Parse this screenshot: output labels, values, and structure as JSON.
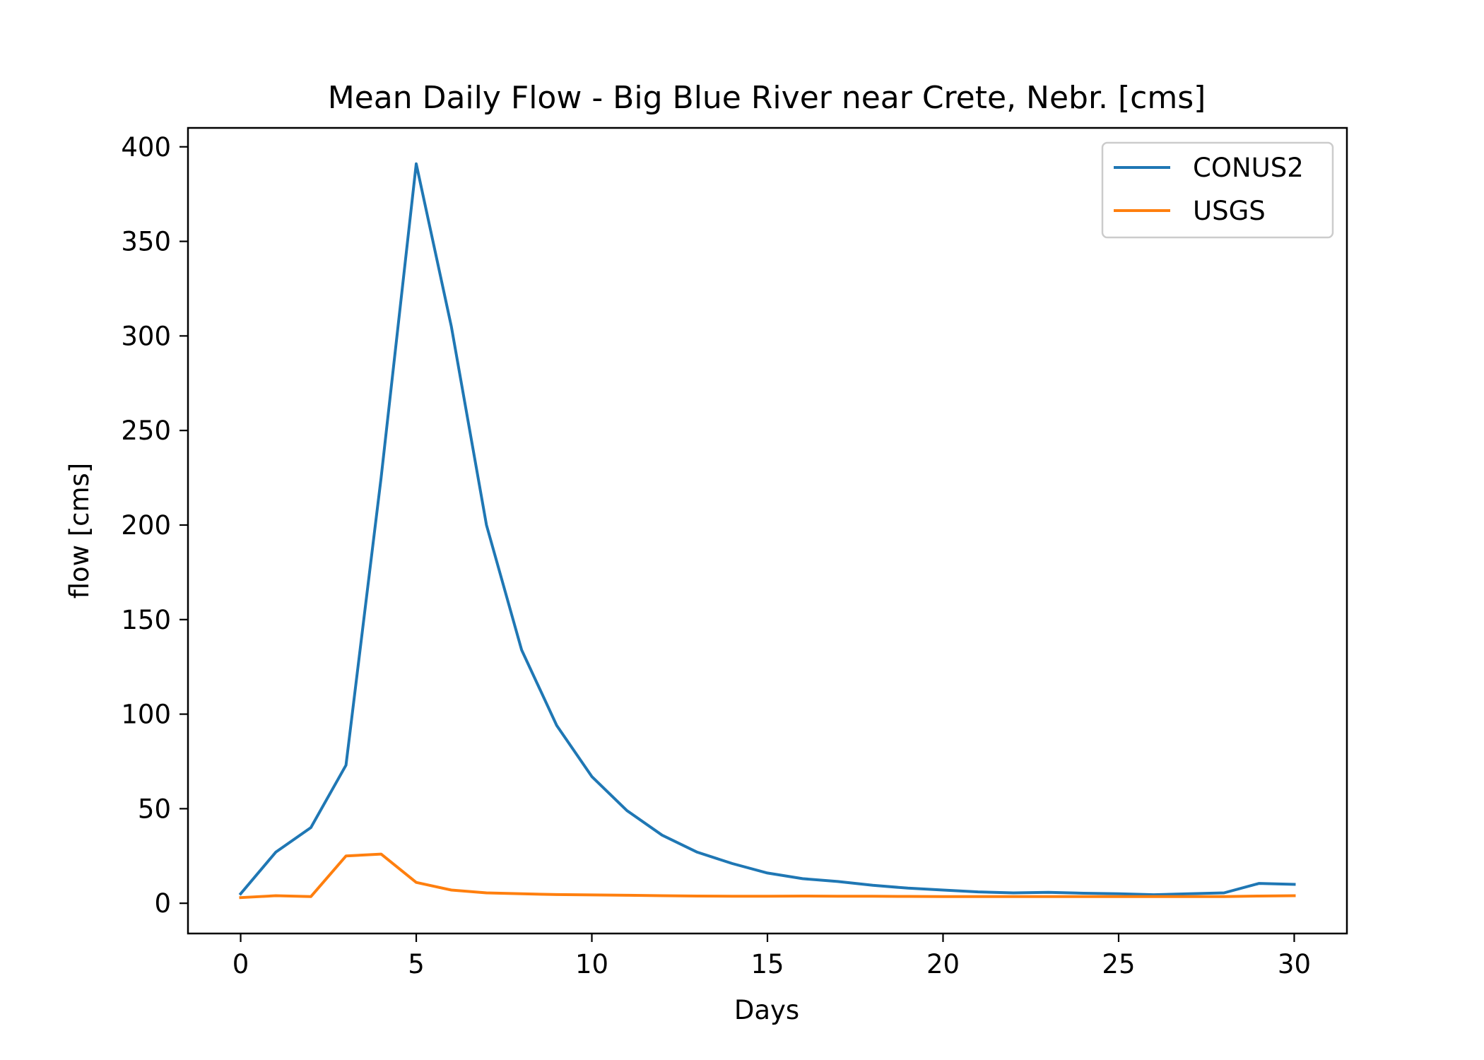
{
  "chart_data": {
    "type": "line",
    "title": "Mean Daily Flow - Big Blue River near Crete, Nebr. [cms]",
    "xlabel": "Days",
    "ylabel": "flow [cms]",
    "xlim": [
      -1.5,
      31.5
    ],
    "ylim": [
      -16,
      410
    ],
    "xticks": [
      0,
      5,
      10,
      15,
      20,
      25,
      30
    ],
    "yticks": [
      0,
      50,
      100,
      150,
      200,
      250,
      300,
      350,
      400
    ],
    "grid": false,
    "legend": "top-right",
    "x": [
      0,
      1,
      2,
      3,
      4,
      5,
      6,
      7,
      8,
      9,
      10,
      11,
      12,
      13,
      14,
      15,
      16,
      17,
      18,
      19,
      20,
      21,
      22,
      23,
      24,
      25,
      26,
      27,
      28,
      29,
      30
    ],
    "series": [
      {
        "name": "CONUS2",
        "color": "#1f77b4",
        "values": [
          5,
          27,
          40,
          73,
          225,
          391,
          305,
          200,
          134,
          94,
          67,
          49,
          36,
          27,
          21,
          16,
          13,
          11.5,
          9.5,
          8,
          7,
          6,
          5.5,
          5.8,
          5.3,
          5,
          4.5,
          5,
          5.5,
          10.5,
          10
        ]
      },
      {
        "name": "USGS",
        "color": "#ff7f0e",
        "values": [
          3,
          4,
          3.5,
          25,
          26,
          11,
          7,
          5.5,
          5,
          4.6,
          4.4,
          4.2,
          4,
          3.8,
          3.7,
          3.7,
          3.8,
          3.7,
          3.7,
          3.6,
          3.5,
          3.5,
          3.5,
          3.5,
          3.5,
          3.5,
          3.5,
          3.5,
          3.5,
          3.8,
          4
        ]
      }
    ]
  }
}
